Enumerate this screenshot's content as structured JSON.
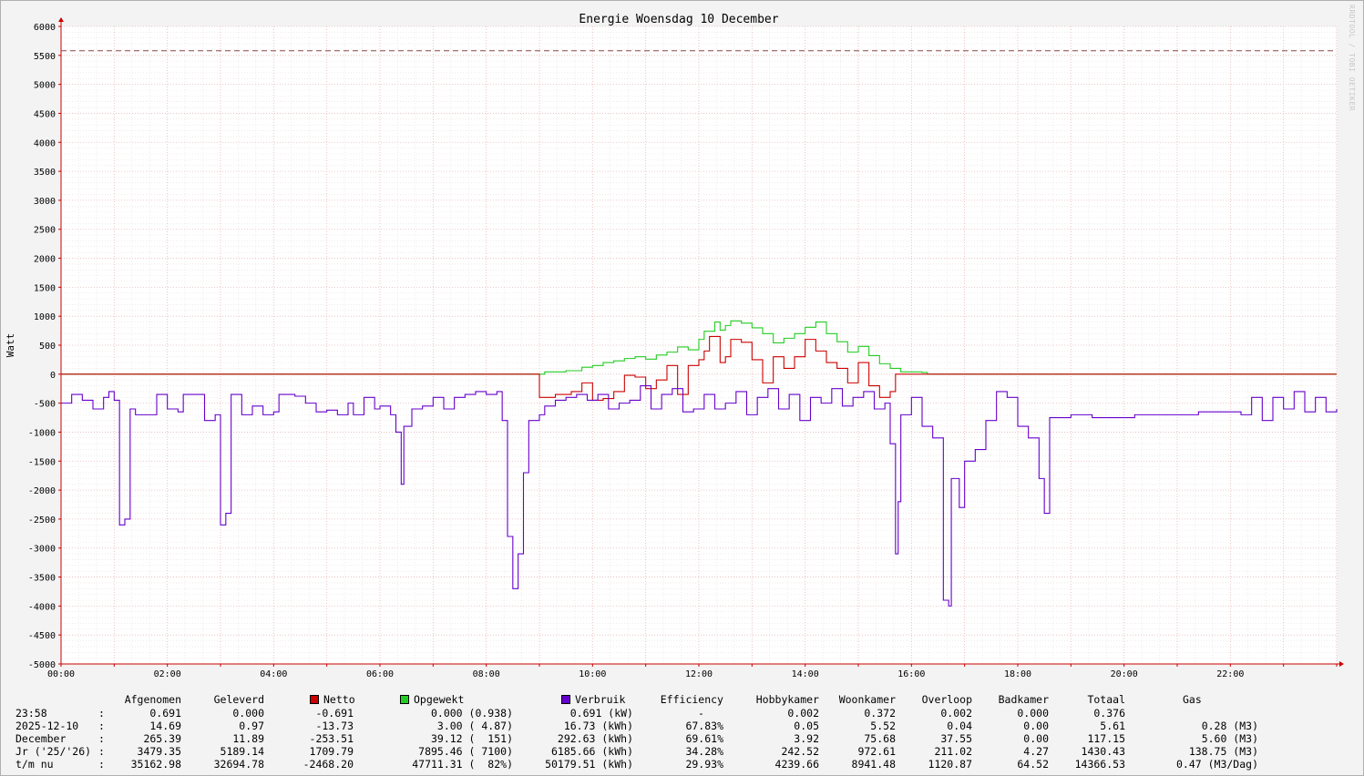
{
  "watermark": "RRDTOOL / TOBI OETIKER",
  "colors": {
    "background": "#f3f3f3",
    "grid": "#e8b8b8",
    "netto": "#cc0000",
    "opgewekt": "#22cc22",
    "verbruik": "#6600cc",
    "limit_line": "#8a4a4a"
  },
  "chart_data": {
    "type": "line",
    "title": "Energie Woensdag  10 December",
    "ylabel": "Watt",
    "xlabel": "",
    "ylim": [
      -5000,
      6000
    ],
    "xlim_hours": [
      0,
      24
    ],
    "grid": true,
    "y_ticks": [
      "6000",
      "5500",
      "5000",
      "4500",
      "4000",
      "3500",
      "3000",
      "2500",
      "2000",
      "1500",
      "1000",
      "500",
      "0",
      "-500",
      "-1000",
      "-1500",
      "-2000",
      "-2500",
      "-3000",
      "-3500",
      "-4000",
      "-4500",
      "-5000"
    ],
    "x_ticks": [
      "00:00",
      "02:00",
      "04:00",
      "06:00",
      "08:00",
      "10:00",
      "12:00",
      "14:00",
      "16:00",
      "18:00",
      "20:00",
      "22:00"
    ],
    "limit_line_value": 5580,
    "series": [
      {
        "name": "Opgewekt",
        "color": "#22cc22",
        "points": [
          [
            0,
            0
          ],
          [
            9.0,
            0
          ],
          [
            9.1,
            40
          ],
          [
            9.5,
            60
          ],
          [
            9.8,
            120
          ],
          [
            10.0,
            150
          ],
          [
            10.2,
            200
          ],
          [
            10.4,
            230
          ],
          [
            10.6,
            270
          ],
          [
            10.8,
            300
          ],
          [
            11.0,
            260
          ],
          [
            11.2,
            330
          ],
          [
            11.4,
            380
          ],
          [
            11.6,
            470
          ],
          [
            11.8,
            420
          ],
          [
            12.0,
            600
          ],
          [
            12.1,
            740
          ],
          [
            12.3,
            900
          ],
          [
            12.4,
            760
          ],
          [
            12.5,
            840
          ],
          [
            12.6,
            920
          ],
          [
            12.8,
            880
          ],
          [
            13.0,
            800
          ],
          [
            13.2,
            700
          ],
          [
            13.4,
            540
          ],
          [
            13.6,
            620
          ],
          [
            13.8,
            700
          ],
          [
            14.0,
            810
          ],
          [
            14.2,
            900
          ],
          [
            14.4,
            700
          ],
          [
            14.6,
            560
          ],
          [
            14.8,
            380
          ],
          [
            15.0,
            480
          ],
          [
            15.2,
            320
          ],
          [
            15.4,
            180
          ],
          [
            15.6,
            100
          ],
          [
            15.8,
            40
          ],
          [
            16.2,
            30
          ],
          [
            16.3,
            0
          ],
          [
            24,
            0
          ]
        ]
      },
      {
        "name": "Netto",
        "color": "#cc0000",
        "points": [
          [
            0,
            0
          ],
          [
            8.9,
            0
          ],
          [
            9.0,
            -400
          ],
          [
            9.3,
            -350
          ],
          [
            9.6,
            -300
          ],
          [
            9.8,
            -150
          ],
          [
            10.0,
            -450
          ],
          [
            10.2,
            -420
          ],
          [
            10.4,
            -300
          ],
          [
            10.6,
            -20
          ],
          [
            10.8,
            -50
          ],
          [
            11.0,
            -250
          ],
          [
            11.2,
            -100
          ],
          [
            11.4,
            150
          ],
          [
            11.6,
            -350
          ],
          [
            11.8,
            150
          ],
          [
            12.0,
            250
          ],
          [
            12.1,
            400
          ],
          [
            12.2,
            650
          ],
          [
            12.4,
            200
          ],
          [
            12.5,
            300
          ],
          [
            12.6,
            600
          ],
          [
            12.8,
            550
          ],
          [
            13.0,
            250
          ],
          [
            13.2,
            -150
          ],
          [
            13.4,
            300
          ],
          [
            13.6,
            100
          ],
          [
            13.8,
            300
          ],
          [
            14.0,
            600
          ],
          [
            14.2,
            400
          ],
          [
            14.4,
            200
          ],
          [
            14.6,
            100
          ],
          [
            14.8,
            -150
          ],
          [
            15.0,
            200
          ],
          [
            15.2,
            -200
          ],
          [
            15.4,
            -400
          ],
          [
            15.6,
            -300
          ],
          [
            15.7,
            0
          ],
          [
            24,
            0
          ]
        ]
      },
      {
        "name": "Verbruik",
        "color": "#6600cc",
        "points": [
          [
            0,
            -500
          ],
          [
            0.2,
            -350
          ],
          [
            0.4,
            -450
          ],
          [
            0.6,
            -600
          ],
          [
            0.8,
            -400
          ],
          [
            0.9,
            -300
          ],
          [
            1.0,
            -450
          ],
          [
            1.1,
            -2600
          ],
          [
            1.2,
            -2500
          ],
          [
            1.3,
            -600
          ],
          [
            1.4,
            -700
          ],
          [
            1.6,
            -700
          ],
          [
            1.8,
            -350
          ],
          [
            2.0,
            -600
          ],
          [
            2.2,
            -650
          ],
          [
            2.3,
            -350
          ],
          [
            2.6,
            -350
          ],
          [
            2.7,
            -800
          ],
          [
            2.9,
            -700
          ],
          [
            3.0,
            -2600
          ],
          [
            3.1,
            -2400
          ],
          [
            3.2,
            -350
          ],
          [
            3.4,
            -700
          ],
          [
            3.6,
            -550
          ],
          [
            3.8,
            -700
          ],
          [
            4.0,
            -650
          ],
          [
            4.1,
            -350
          ],
          [
            4.4,
            -380
          ],
          [
            4.6,
            -500
          ],
          [
            4.8,
            -650
          ],
          [
            5.0,
            -620
          ],
          [
            5.2,
            -700
          ],
          [
            5.4,
            -500
          ],
          [
            5.5,
            -700
          ],
          [
            5.7,
            -400
          ],
          [
            5.9,
            -600
          ],
          [
            6.0,
            -550
          ],
          [
            6.2,
            -700
          ],
          [
            6.3,
            -1000
          ],
          [
            6.4,
            -1900
          ],
          [
            6.45,
            -900
          ],
          [
            6.6,
            -600
          ],
          [
            6.8,
            -550
          ],
          [
            7.0,
            -400
          ],
          [
            7.2,
            -600
          ],
          [
            7.4,
            -400
          ],
          [
            7.6,
            -350
          ],
          [
            7.8,
            -300
          ],
          [
            8.0,
            -350
          ],
          [
            8.2,
            -300
          ],
          [
            8.3,
            -800
          ],
          [
            8.4,
            -2800
          ],
          [
            8.5,
            -3700
          ],
          [
            8.6,
            -3100
          ],
          [
            8.7,
            -1700
          ],
          [
            8.8,
            -800
          ],
          [
            9.0,
            -700
          ],
          [
            9.1,
            -550
          ],
          [
            9.3,
            -450
          ],
          [
            9.5,
            -400
          ],
          [
            9.7,
            -350
          ],
          [
            9.9,
            -450
          ],
          [
            10.1,
            -350
          ],
          [
            10.3,
            -600
          ],
          [
            10.5,
            -500
          ],
          [
            10.7,
            -450
          ],
          [
            10.9,
            -200
          ],
          [
            11.1,
            -600
          ],
          [
            11.3,
            -350
          ],
          [
            11.5,
            -250
          ],
          [
            11.7,
            -650
          ],
          [
            11.9,
            -600
          ],
          [
            12.1,
            -350
          ],
          [
            12.3,
            -600
          ],
          [
            12.5,
            -500
          ],
          [
            12.7,
            -300
          ],
          [
            12.9,
            -700
          ],
          [
            13.1,
            -400
          ],
          [
            13.3,
            -250
          ],
          [
            13.5,
            -600
          ],
          [
            13.7,
            -350
          ],
          [
            13.9,
            -800
          ],
          [
            14.1,
            -400
          ],
          [
            14.3,
            -500
          ],
          [
            14.5,
            -250
          ],
          [
            14.7,
            -550
          ],
          [
            14.9,
            -400
          ],
          [
            15.1,
            -300
          ],
          [
            15.3,
            -600
          ],
          [
            15.5,
            -500
          ],
          [
            15.6,
            -1200
          ],
          [
            15.7,
            -3100
          ],
          [
            15.75,
            -2200
          ],
          [
            15.8,
            -700
          ],
          [
            16.0,
            -400
          ],
          [
            16.2,
            -900
          ],
          [
            16.4,
            -1100
          ],
          [
            16.6,
            -3900
          ],
          [
            16.7,
            -4000
          ],
          [
            16.75,
            -1800
          ],
          [
            16.9,
            -2300
          ],
          [
            17.0,
            -1500
          ],
          [
            17.2,
            -1300
          ],
          [
            17.4,
            -800
          ],
          [
            17.6,
            -300
          ],
          [
            17.8,
            -400
          ],
          [
            18.0,
            -900
          ],
          [
            18.2,
            -1100
          ],
          [
            18.4,
            -1800
          ],
          [
            18.5,
            -2400
          ],
          [
            18.6,
            -750
          ],
          [
            19.0,
            -700
          ],
          [
            19.4,
            -750
          ],
          [
            19.8,
            -750
          ],
          [
            20.2,
            -700
          ],
          [
            20.6,
            -700
          ],
          [
            21.0,
            -700
          ],
          [
            21.4,
            -650
          ],
          [
            21.8,
            -650
          ],
          [
            22.2,
            -700
          ],
          [
            22.4,
            -400
          ],
          [
            22.6,
            -800
          ],
          [
            22.8,
            -400
          ],
          [
            23.0,
            -600
          ],
          [
            23.2,
            -300
          ],
          [
            23.4,
            -650
          ],
          [
            23.6,
            -400
          ],
          [
            23.8,
            -650
          ],
          [
            24,
            -600
          ]
        ]
      }
    ]
  },
  "legend": {
    "headers": [
      "Afgenomen",
      "Geleverd",
      "Netto",
      "Opgewekt",
      "Verbruik",
      "Efficiency",
      "Hobbykamer",
      "Woonkamer",
      "Overloop",
      "Badkamer",
      "Totaal",
      "Gas"
    ],
    "rows": [
      {
        "label": "23:58",
        "sep": ":",
        "afgenomen": "0.691",
        "geleverd": "0.000",
        "netto": "-0.691",
        "opgewekt": "0.000 (0.938)",
        "verbruik": "0.691 (kW)",
        "efficiency": "-",
        "hobbykamer": "0.002",
        "woonkamer": "0.372",
        "overloop": "0.002",
        "badkamer": "0.000",
        "totaal": "0.376",
        "gas": ""
      },
      {
        "label": "2025-12-10",
        "sep": ":",
        "afgenomen": "14.69",
        "geleverd": "0.97",
        "netto": "-13.73",
        "opgewekt": "3.00 ( 4.87)",
        "verbruik": "16.73 (kWh)",
        "efficiency": "67.83%",
        "hobbykamer": "0.05",
        "woonkamer": "5.52",
        "overloop": "0.04",
        "badkamer": "0.00",
        "totaal": "5.61",
        "gas": "0.28 (M3)"
      },
      {
        "label": "December",
        "sep": ":",
        "afgenomen": "265.39",
        "geleverd": "11.89",
        "netto": "-253.51",
        "opgewekt": "39.12 (  151)",
        "verbruik": "292.63 (kWh)",
        "efficiency": "69.61%",
        "hobbykamer": "3.92",
        "woonkamer": "75.68",
        "overloop": "37.55",
        "badkamer": "0.00",
        "totaal": "117.15",
        "gas": "5.60 (M3)"
      },
      {
        "label": "Jr ('25/'26)",
        "sep": ":",
        "afgenomen": "3479.35",
        "geleverd": "5189.14",
        "netto": "1709.79",
        "opgewekt": "7895.46 ( 7100)",
        "verbruik": "6185.66 (kWh)",
        "efficiency": "34.28%",
        "hobbykamer": "242.52",
        "woonkamer": "972.61",
        "overloop": "211.02",
        "badkamer": "4.27",
        "totaal": "1430.43",
        "gas": "138.75 (M3)"
      },
      {
        "label": "t/m nu",
        "sep": ":",
        "afgenomen": "35162.98",
        "geleverd": "32694.78",
        "netto": "-2468.20",
        "opgewekt": "47711.31 (  82%)",
        "verbruik": "50179.51 (kWh)",
        "efficiency": "29.93%",
        "hobbykamer": "4239.66",
        "woonkamer": "8941.48",
        "overloop": "1120.87",
        "badkamer": "64.52",
        "totaal": "14366.53",
        "gas": "0.47 (M3/Dag)"
      }
    ]
  }
}
